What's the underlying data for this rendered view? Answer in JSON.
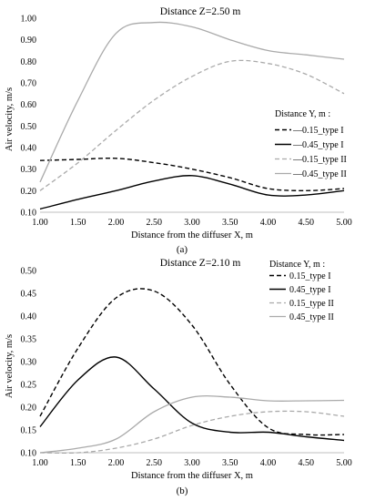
{
  "chart_data": [
    {
      "type": "line",
      "panel_label": "(a)",
      "title": "Distance Z=2.50 m",
      "xlabel": "Distance from the diffuser X, m",
      "ylabel": "Air velocity, m/s",
      "xlim": [
        1.0,
        5.0
      ],
      "ylim": [
        0.1,
        1.0
      ],
      "x_ticks": [
        "1.00",
        "1.50",
        "2.00",
        "2.50",
        "3.00",
        "3.50",
        "4.00",
        "4.50",
        "5.00"
      ],
      "y_ticks": [
        "0.10",
        "0.20",
        "0.30",
        "0.40",
        "0.50",
        "0.60",
        "0.70",
        "0.80",
        "0.90",
        "1.00"
      ],
      "grid": false,
      "legend_title": "Distance Y, m :",
      "legend_position": "right",
      "series": [
        {
          "name": "—0.15_type I",
          "color": "#000000",
          "dash": "5,3",
          "x": [
            1.0,
            1.5,
            2.0,
            2.5,
            3.0,
            3.5,
            4.0,
            4.5,
            5.0
          ],
          "y": [
            0.34,
            0.345,
            0.35,
            0.33,
            0.3,
            0.26,
            0.21,
            0.2,
            0.21
          ]
        },
        {
          "name": "—0.45_type I",
          "color": "#000000",
          "dash": "",
          "x": [
            1.0,
            1.5,
            2.0,
            2.5,
            3.0,
            3.5,
            4.0,
            4.5,
            5.0
          ],
          "y": [
            0.115,
            0.16,
            0.2,
            0.245,
            0.27,
            0.23,
            0.18,
            0.18,
            0.2
          ]
        },
        {
          "name": "—0.15_type II",
          "color": "#aaaaaa",
          "dash": "5,3",
          "x": [
            1.0,
            1.5,
            2.0,
            2.5,
            3.0,
            3.5,
            4.0,
            4.5,
            5.0
          ],
          "y": [
            0.2,
            0.33,
            0.48,
            0.62,
            0.73,
            0.8,
            0.79,
            0.74,
            0.65
          ]
        },
        {
          "name": "—0.45_type II",
          "color": "#aaaaaa",
          "dash": "",
          "x": [
            1.0,
            1.5,
            2.0,
            2.5,
            3.0,
            3.5,
            4.0,
            4.5,
            5.0
          ],
          "y": [
            0.24,
            0.62,
            0.93,
            0.98,
            0.96,
            0.9,
            0.85,
            0.83,
            0.81
          ]
        }
      ]
    },
    {
      "type": "line",
      "panel_label": "(b)",
      "title": "Distance Z=2.10 m",
      "xlabel": "Distance from the diffuser X, m",
      "ylabel": "Air velocity, m/s",
      "xlim": [
        1.0,
        5.0
      ],
      "ylim": [
        0.1,
        0.5
      ],
      "x_ticks": [
        "1.00",
        "1.50",
        "2.00",
        "2.50",
        "3.00",
        "3.50",
        "4.00",
        "4.50",
        "5.00"
      ],
      "y_ticks": [
        "0.10",
        "0.15",
        "0.20",
        "0.25",
        "0.30",
        "0.35",
        "0.40",
        "0.45",
        "0.50"
      ],
      "grid": false,
      "legend_title": "Distance Y, m :",
      "legend_position": "top-right",
      "series": [
        {
          "name": "0.15_type I",
          "color": "#000000",
          "dash": "5,3",
          "x": [
            1.0,
            1.5,
            2.0,
            2.5,
            3.0,
            3.5,
            4.0,
            4.5,
            5.0
          ],
          "y": [
            0.18,
            0.33,
            0.44,
            0.455,
            0.38,
            0.25,
            0.155,
            0.14,
            0.14
          ]
        },
        {
          "name": "0.45_type I",
          "color": "#000000",
          "dash": "",
          "x": [
            1.0,
            1.5,
            2.0,
            2.5,
            3.0,
            3.5,
            4.0,
            4.5,
            5.0
          ],
          "y": [
            0.157,
            0.26,
            0.31,
            0.24,
            0.165,
            0.145,
            0.145,
            0.135,
            0.127
          ]
        },
        {
          "name": "0.15_type II",
          "color": "#aaaaaa",
          "dash": "5,3",
          "x": [
            1.0,
            1.5,
            2.0,
            2.5,
            3.0,
            3.5,
            4.0,
            4.5,
            5.0
          ],
          "y": [
            0.1,
            0.1,
            0.11,
            0.13,
            0.16,
            0.18,
            0.19,
            0.19,
            0.18
          ]
        },
        {
          "name": "0.45_type II",
          "color": "#aaaaaa",
          "dash": "",
          "x": [
            1.0,
            1.5,
            2.0,
            2.5,
            3.0,
            3.5,
            4.0,
            4.5,
            5.0
          ],
          "y": [
            0.1,
            0.11,
            0.13,
            0.19,
            0.222,
            0.222,
            0.214,
            0.214,
            0.215
          ]
        }
      ]
    }
  ]
}
